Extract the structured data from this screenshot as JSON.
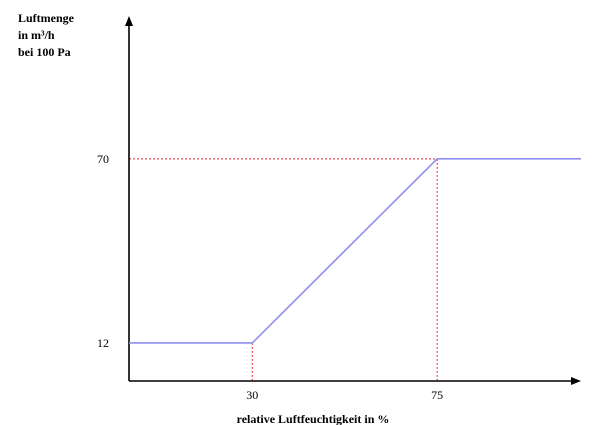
{
  "chart_data": {
    "type": "line",
    "title": "",
    "ylabel_lines": [
      "Luftmenge",
      "in m³/h",
      "bei 100 Pa"
    ],
    "xlabel": "relative Luftfeuchtigkeit in %",
    "x_ticks": [
      {
        "value": 30,
        "label": "30"
      },
      {
        "value": 75,
        "label": "75"
      }
    ],
    "y_ticks": [
      {
        "value": 12,
        "label": "12"
      },
      {
        "value": 70,
        "label": "70"
      }
    ],
    "xlim": [
      0,
      110
    ],
    "ylim": [
      0,
      115
    ],
    "grid": false,
    "guides": [
      {
        "x": 30,
        "y": 12
      },
      {
        "x": 75,
        "y": 70
      }
    ],
    "series": [
      {
        "points": [
          [
            0,
            12
          ],
          [
            30,
            12
          ],
          [
            75,
            70
          ],
          [
            110,
            70
          ]
        ]
      }
    ],
    "colors": {
      "line": "#8f8fef",
      "guide": "#e8222a",
      "axis": "#000000"
    }
  }
}
